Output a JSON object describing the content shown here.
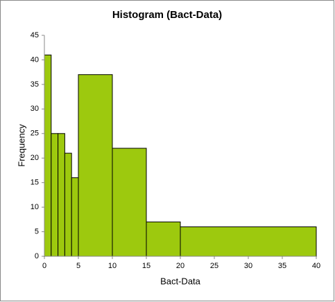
{
  "chart_data": {
    "type": "histogram",
    "title": "Histogram  (Bact-Data)",
    "x_label": "Bact-Data",
    "y_label": "Frequency",
    "bins": [
      0,
      1,
      2,
      3,
      4,
      5,
      10,
      15,
      20,
      40
    ],
    "values": [
      41,
      25,
      25,
      21,
      16,
      37,
      22,
      7,
      6
    ],
    "color": "#9dc90e",
    "xlim": [
      0,
      40
    ],
    "xticks": [
      0,
      5,
      10,
      15,
      20,
      25,
      30,
      35,
      40
    ],
    "ylim": [
      0,
      45
    ],
    "yticks": [
      0,
      5,
      10,
      15,
      20,
      25,
      30,
      35,
      40,
      45
    ],
    "grid": false
  }
}
